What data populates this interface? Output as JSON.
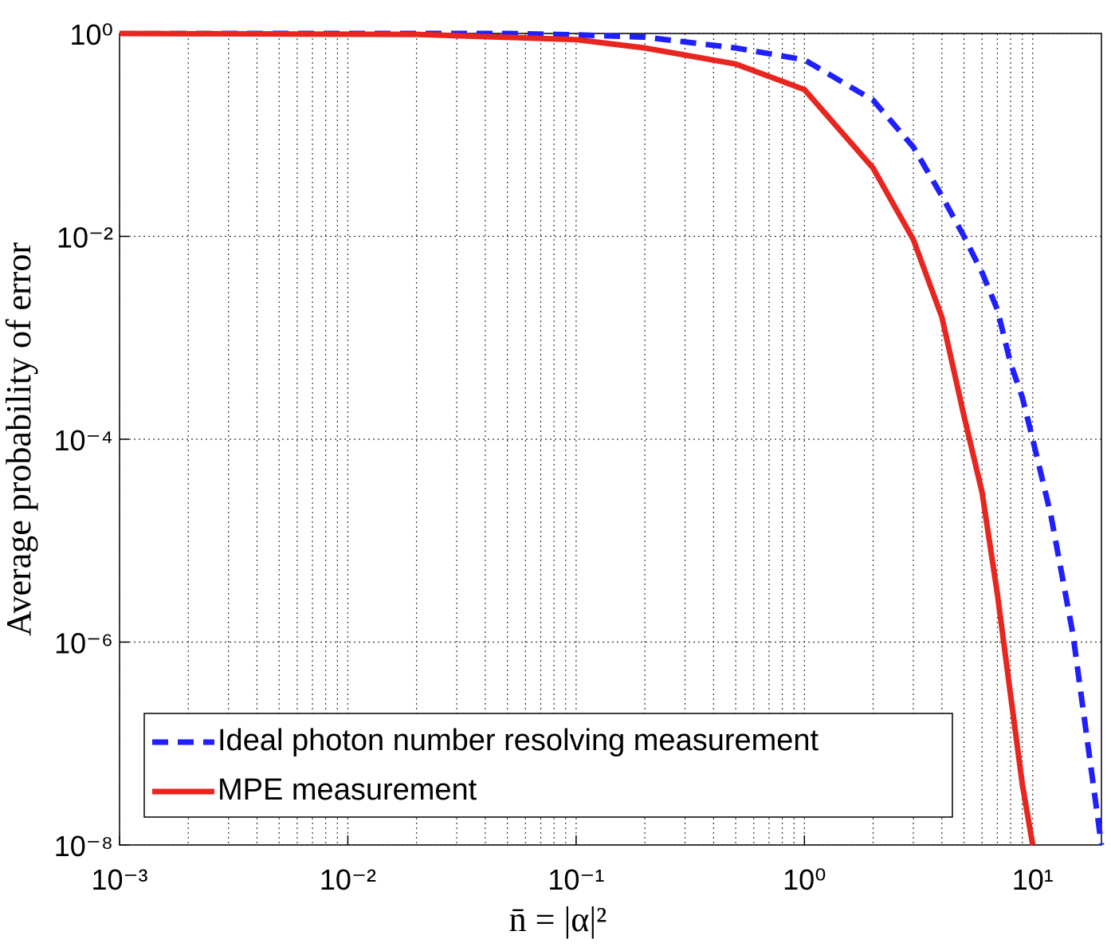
{
  "chart_data": {
    "type": "line",
    "xlabel": "n̄ = |α|²",
    "ylabel": "Average probability of error",
    "xscale": "log",
    "yscale": "log",
    "xlim": [
      0.001,
      20
    ],
    "ylim": [
      1e-08,
      1
    ],
    "xticks": [
      {
        "value": 0.001,
        "label": "10⁻³"
      },
      {
        "value": 0.01,
        "label": "10⁻²"
      },
      {
        "value": 0.1,
        "label": "10⁻¹"
      },
      {
        "value": 1,
        "label": "10⁰"
      },
      {
        "value": 10,
        "label": "10¹"
      }
    ],
    "yticks": [
      {
        "value": 1e-08,
        "label": "10⁻⁸"
      },
      {
        "value": 1e-06,
        "label": "10⁻⁶"
      },
      {
        "value": 0.0001,
        "label": "10⁻⁴"
      },
      {
        "value": 0.01,
        "label": "10⁻²"
      },
      {
        "value": 1,
        "label": "10⁰"
      }
    ],
    "grid": true,
    "minor_grid_x": true,
    "legend": "lower left",
    "series": [
      {
        "name": "Ideal photon number resolving measurement",
        "color": "#1f1fff",
        "dash": "dashed",
        "x": [
          0.001,
          0.05,
          0.1,
          0.2,
          0.5,
          1,
          2,
          3,
          4,
          5,
          6,
          7,
          8,
          9,
          10,
          12,
          15,
          20
        ],
        "values": [
          1,
          1,
          0.97,
          0.92,
          0.72,
          0.55,
          0.22,
          0.076,
          0.025,
          0.01,
          0.0044,
          0.0019,
          0.00056,
          0.00026,
          0.0001,
          1.8e-05,
          1.2e-06,
          1e-08
        ]
      },
      {
        "name": "MPE measurement",
        "color": "#e8251f",
        "dash": "solid",
        "x": [
          0.001,
          0.02,
          0.1,
          0.2,
          0.5,
          1,
          2,
          3,
          4,
          5,
          6,
          7,
          8,
          9,
          10
        ],
        "values": [
          1,
          0.98,
          0.87,
          0.72,
          0.5,
          0.28,
          0.047,
          0.0093,
          0.0016,
          0.00017,
          3e-05,
          3e-06,
          3e-07,
          4e-08,
          1e-08
        ]
      }
    ]
  }
}
